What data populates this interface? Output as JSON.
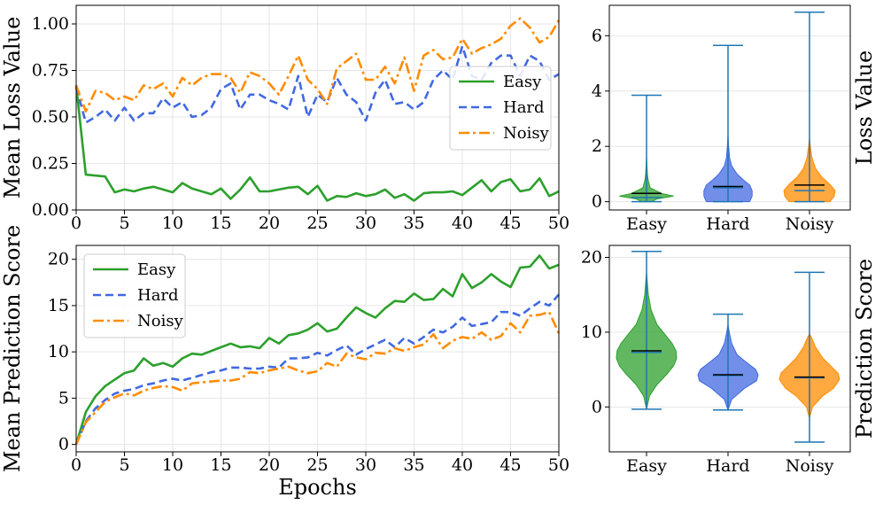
{
  "chart_data": [
    {
      "id": "loss_line",
      "type": "line",
      "xlabel": "",
      "ylabel": "Mean Loss Value",
      "xlim": [
        0,
        50
      ],
      "ylim": [
        0,
        1.1
      ],
      "xticks": [
        0,
        5,
        10,
        15,
        20,
        25,
        30,
        35,
        40,
        45,
        50
      ],
      "xtick_labels": [
        "0",
        "5",
        "10",
        "15",
        "20",
        "25",
        "30",
        "35",
        "40",
        "45",
        "50"
      ],
      "yticks": [
        0,
        0.25,
        0.5,
        0.75,
        1.0
      ],
      "ytick_labels": [
        "0.00",
        "0.25",
        "0.50",
        "0.75",
        "1.00"
      ],
      "grid": true,
      "legend": "center-right",
      "x": [
        0,
        1,
        2,
        3,
        4,
        5,
        6,
        7,
        8,
        9,
        10,
        11,
        12,
        13,
        14,
        15,
        16,
        17,
        18,
        19,
        20,
        21,
        22,
        23,
        24,
        25,
        26,
        27,
        28,
        29,
        30,
        31,
        32,
        33,
        34,
        35,
        36,
        37,
        38,
        39,
        40,
        41,
        42,
        43,
        44,
        45,
        46,
        47,
        48,
        49,
        50
      ],
      "series": [
        {
          "name": "Easy",
          "color": "#2ca02c",
          "dash": "solid",
          "values": [
            0.67,
            0.19,
            0.185,
            0.18,
            0.095,
            0.11,
            0.1,
            0.115,
            0.125,
            0.11,
            0.095,
            0.145,
            0.115,
            0.1,
            0.085,
            0.115,
            0.06,
            0.11,
            0.175,
            0.1,
            0.1,
            0.11,
            0.12,
            0.125,
            0.085,
            0.13,
            0.05,
            0.075,
            0.07,
            0.09,
            0.075,
            0.085,
            0.11,
            0.065,
            0.085,
            0.05,
            0.09,
            0.095,
            0.095,
            0.1,
            0.08,
            0.12,
            0.16,
            0.1,
            0.15,
            0.165,
            0.1,
            0.11,
            0.17,
            0.075,
            0.1
          ]
        },
        {
          "name": "Hard",
          "color": "#4169e1",
          "dash": "dashed",
          "values": [
            0.66,
            0.47,
            0.5,
            0.54,
            0.48,
            0.55,
            0.48,
            0.52,
            0.52,
            0.6,
            0.55,
            0.58,
            0.5,
            0.51,
            0.55,
            0.65,
            0.68,
            0.54,
            0.62,
            0.62,
            0.59,
            0.57,
            0.54,
            0.72,
            0.5,
            0.62,
            0.58,
            0.71,
            0.62,
            0.58,
            0.48,
            0.63,
            0.7,
            0.57,
            0.58,
            0.54,
            0.58,
            0.7,
            0.75,
            0.7,
            0.88,
            0.72,
            0.7,
            0.79,
            0.83,
            0.83,
            0.72,
            0.83,
            0.8,
            0.7,
            0.73
          ]
        },
        {
          "name": "Noisy",
          "color": "#ff8c00",
          "dash": "dashdot",
          "values": [
            0.67,
            0.53,
            0.64,
            0.63,
            0.59,
            0.61,
            0.59,
            0.67,
            0.65,
            0.68,
            0.61,
            0.71,
            0.67,
            0.71,
            0.73,
            0.73,
            0.71,
            0.63,
            0.74,
            0.72,
            0.68,
            0.62,
            0.72,
            0.83,
            0.7,
            0.65,
            0.57,
            0.76,
            0.8,
            0.84,
            0.7,
            0.7,
            0.77,
            0.68,
            0.82,
            0.64,
            0.83,
            0.86,
            0.81,
            0.82,
            0.92,
            0.84,
            0.87,
            0.89,
            0.92,
            0.99,
            1.03,
            0.98,
            0.9,
            0.93,
            1.02
          ]
        }
      ]
    },
    {
      "id": "loss_violin",
      "type": "violin",
      "ylabel": "Loss Value",
      "ylim": [
        -0.3,
        7.1
      ],
      "yticks": [
        0,
        2,
        4,
        6
      ],
      "ytick_labels": [
        "0",
        "2",
        "4",
        "6"
      ],
      "categories": [
        "Easy",
        "Hard",
        "Noisy"
      ],
      "series": [
        {
          "name": "Easy",
          "color": "#2ca02c",
          "min": 0.0,
          "max": 3.85,
          "median": 0.15,
          "mean": 0.3,
          "body": [
            [
              0.0,
              0.16
            ],
            [
              0.1,
              0.35
            ],
            [
              0.2,
              0.9
            ],
            [
              0.3,
              0.5
            ],
            [
              0.5,
              0.12
            ],
            [
              0.8,
              0.05
            ],
            [
              1.0,
              0.03
            ],
            [
              1.3,
              0.015
            ],
            [
              1.6,
              0.0
            ]
          ]
        },
        {
          "name": "Hard",
          "color": "#4169e1",
          "min": 0.0,
          "max": 5.65,
          "median": 0.5,
          "mean": 0.55,
          "body": [
            [
              0.0,
              0.72
            ],
            [
              0.2,
              0.8
            ],
            [
              0.4,
              0.8
            ],
            [
              0.6,
              0.72
            ],
            [
              0.8,
              0.5
            ],
            [
              1.0,
              0.3
            ],
            [
              1.3,
              0.12
            ],
            [
              1.6,
              0.05
            ],
            [
              2.0,
              0.02
            ],
            [
              2.4,
              0.0
            ]
          ]
        },
        {
          "name": "Noisy",
          "color": "#ff8c00",
          "min": 0.0,
          "max": 6.85,
          "median": 0.4,
          "mean": 0.6,
          "body": [
            [
              0.0,
              0.68
            ],
            [
              0.2,
              0.82
            ],
            [
              0.4,
              0.85
            ],
            [
              0.6,
              0.7
            ],
            [
              0.9,
              0.4
            ],
            [
              1.2,
              0.2
            ],
            [
              1.6,
              0.08
            ],
            [
              2.0,
              0.03
            ],
            [
              2.3,
              0.0
            ]
          ]
        }
      ]
    },
    {
      "id": "score_line",
      "type": "line",
      "xlabel": "Epochs",
      "ylabel": "Mean Prediction Score",
      "xlim": [
        0,
        50
      ],
      "ylim": [
        -0.8,
        21.5
      ],
      "xticks": [
        0,
        5,
        10,
        15,
        20,
        25,
        30,
        35,
        40,
        45,
        50
      ],
      "xtick_labels": [
        "0",
        "5",
        "10",
        "15",
        "20",
        "25",
        "30",
        "35",
        "40",
        "45",
        "50"
      ],
      "yticks": [
        0,
        5,
        10,
        15,
        20
      ],
      "ytick_labels": [
        "0",
        "5",
        "10",
        "15",
        "20"
      ],
      "grid": true,
      "legend": "upper-left",
      "x": [
        0,
        1,
        2,
        3,
        4,
        5,
        6,
        7,
        8,
        9,
        10,
        11,
        12,
        13,
        14,
        15,
        16,
        17,
        18,
        19,
        20,
        21,
        22,
        23,
        24,
        25,
        26,
        27,
        28,
        29,
        30,
        31,
        32,
        33,
        34,
        35,
        36,
        37,
        38,
        39,
        40,
        41,
        42,
        43,
        44,
        45,
        46,
        47,
        48,
        49,
        50
      ],
      "series": [
        {
          "name": "Easy",
          "color": "#2ca02c",
          "dash": "solid",
          "values": [
            0.0,
            3.5,
            5.2,
            6.3,
            7.0,
            7.7,
            8.0,
            9.3,
            8.5,
            8.8,
            8.4,
            9.3,
            9.8,
            9.7,
            10.1,
            10.5,
            10.9,
            10.5,
            10.6,
            10.4,
            11.5,
            10.9,
            11.8,
            12.0,
            12.4,
            13.1,
            12.2,
            12.5,
            13.7,
            14.8,
            14.2,
            13.7,
            14.7,
            15.5,
            15.4,
            16.3,
            15.6,
            15.7,
            16.8,
            16.0,
            18.4,
            16.9,
            17.5,
            18.4,
            17.6,
            17.0,
            19.1,
            19.2,
            20.4,
            19.0,
            19.4
          ]
        },
        {
          "name": "Hard",
          "color": "#4169e1",
          "dash": "dashed",
          "values": [
            0.0,
            2.5,
            3.9,
            4.8,
            5.5,
            5.8,
            6.0,
            6.4,
            6.6,
            6.9,
            7.1,
            6.9,
            7.2,
            7.5,
            7.8,
            8.0,
            8.3,
            8.3,
            8.2,
            8.2,
            8.4,
            8.3,
            9.3,
            9.3,
            9.4,
            9.9,
            9.6,
            10.2,
            10.7,
            9.7,
            10.3,
            10.8,
            11.3,
            10.5,
            11.5,
            10.9,
            11.6,
            12.4,
            12.1,
            12.7,
            13.7,
            12.8,
            13.0,
            13.2,
            14.3,
            14.3,
            13.9,
            14.7,
            15.4,
            15.0,
            16.2
          ]
        },
        {
          "name": "Noisy",
          "color": "#ff8c00",
          "dash": "dashdot",
          "values": [
            0.0,
            2.4,
            3.5,
            4.6,
            5.1,
            5.5,
            5.3,
            5.8,
            6.1,
            6.3,
            6.2,
            5.8,
            6.6,
            6.7,
            6.8,
            6.9,
            6.9,
            7.1,
            7.8,
            7.7,
            8.0,
            8.2,
            8.4,
            8.0,
            7.7,
            7.9,
            8.8,
            8.4,
            9.8,
            9.4,
            9.2,
            9.9,
            9.8,
            10.4,
            10.1,
            10.5,
            10.8,
            11.9,
            10.4,
            11.2,
            11.6,
            11.4,
            12.1,
            11.3,
            11.7,
            13.1,
            12.1,
            13.9,
            14.0,
            14.3,
            12.0
          ]
        }
      ]
    },
    {
      "id": "score_violin",
      "type": "violin",
      "ylabel": "Prediction Score",
      "ylim": [
        -6.0,
        21.6
      ],
      "yticks": [
        0,
        10,
        20
      ],
      "ytick_labels": [
        "0",
        "10",
        "20"
      ],
      "categories": [
        "Easy",
        "Hard",
        "Noisy"
      ],
      "series": [
        {
          "name": "Easy",
          "color": "#2ca02c",
          "min": -0.3,
          "max": 20.8,
          "median": 7.3,
          "mean": 7.5,
          "body": [
            [
              -0.3,
              0.0
            ],
            [
              1.5,
              0.1
            ],
            [
              3.0,
              0.35
            ],
            [
              4.5,
              0.7
            ],
            [
              5.5,
              0.9
            ],
            [
              6.5,
              1.0
            ],
            [
              7.5,
              0.98
            ],
            [
              8.5,
              0.85
            ],
            [
              9.5,
              0.65
            ],
            [
              11.0,
              0.35
            ],
            [
              13.0,
              0.15
            ],
            [
              15.0,
              0.06
            ],
            [
              17.0,
              0.02
            ],
            [
              18.0,
              0.0
            ]
          ]
        },
        {
          "name": "Hard",
          "color": "#4169e1",
          "min": -0.4,
          "max": 12.4,
          "median": 4.2,
          "mean": 4.3,
          "body": [
            [
              -0.4,
              0.0
            ],
            [
              1.0,
              0.12
            ],
            [
              2.5,
              0.55
            ],
            [
              3.5,
              0.95
            ],
            [
              4.3,
              1.0
            ],
            [
              5.0,
              0.92
            ],
            [
              6.0,
              0.6
            ],
            [
              7.0,
              0.3
            ],
            [
              8.5,
              0.12
            ],
            [
              10.0,
              0.04
            ],
            [
              11.0,
              0.0
            ]
          ]
        },
        {
          "name": "Noisy",
          "color": "#ff8c00",
          "min": -4.7,
          "max": 18.0,
          "median": 3.9,
          "mean": 4.0,
          "body": [
            [
              -1.5,
              0.0
            ],
            [
              0.0,
              0.1
            ],
            [
              1.5,
              0.45
            ],
            [
              2.5,
              0.8
            ],
            [
              3.7,
              1.0
            ],
            [
              4.5,
              0.95
            ],
            [
              5.5,
              0.7
            ],
            [
              6.5,
              0.45
            ],
            [
              8.0,
              0.2
            ],
            [
              9.0,
              0.1
            ],
            [
              9.8,
              0.0
            ]
          ]
        }
      ]
    }
  ]
}
